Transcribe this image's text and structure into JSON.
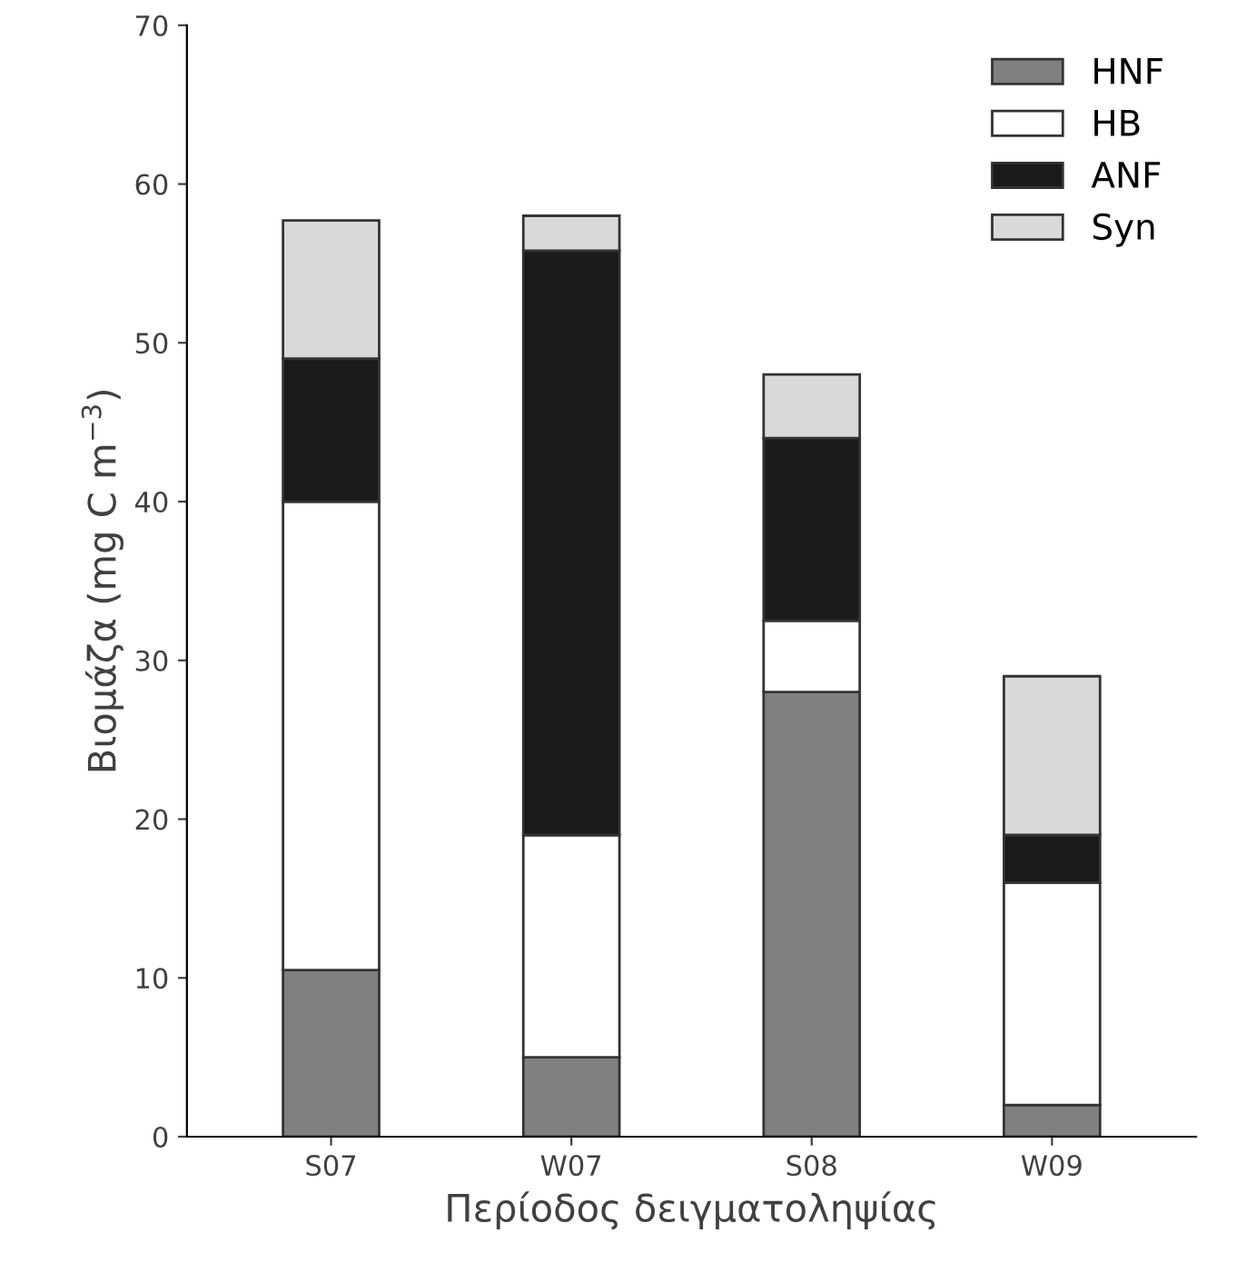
{
  "chart_data": {
    "type": "bar",
    "stacked": true,
    "xlabel": "Περίοδος δειγματοληψίας",
    "ylabel": "Βιομάζα (mg C m$^{−3}$)",
    "categories": [
      "S07",
      "W07",
      "S08",
      "W09"
    ],
    "series": [
      {
        "name": "HNF",
        "color": "#808080",
        "values": [
          10.5,
          5,
          28,
          2
        ]
      },
      {
        "name": "HB",
        "color": "#ffffff",
        "values": [
          29.5,
          14,
          4.5,
          14
        ]
      },
      {
        "name": "ANF",
        "color": "#1a1a1a",
        "values": [
          9,
          36.8,
          11.5,
          3
        ]
      },
      {
        "name": "Syn",
        "color": "#d9d9d9",
        "values": [
          8.7,
          2.2,
          4,
          10
        ]
      }
    ],
    "ylim": [
      0,
      70
    ],
    "yticks": [
      0,
      10,
      20,
      30,
      40,
      50,
      60,
      70
    ],
    "grid": false,
    "legend": "top right"
  }
}
